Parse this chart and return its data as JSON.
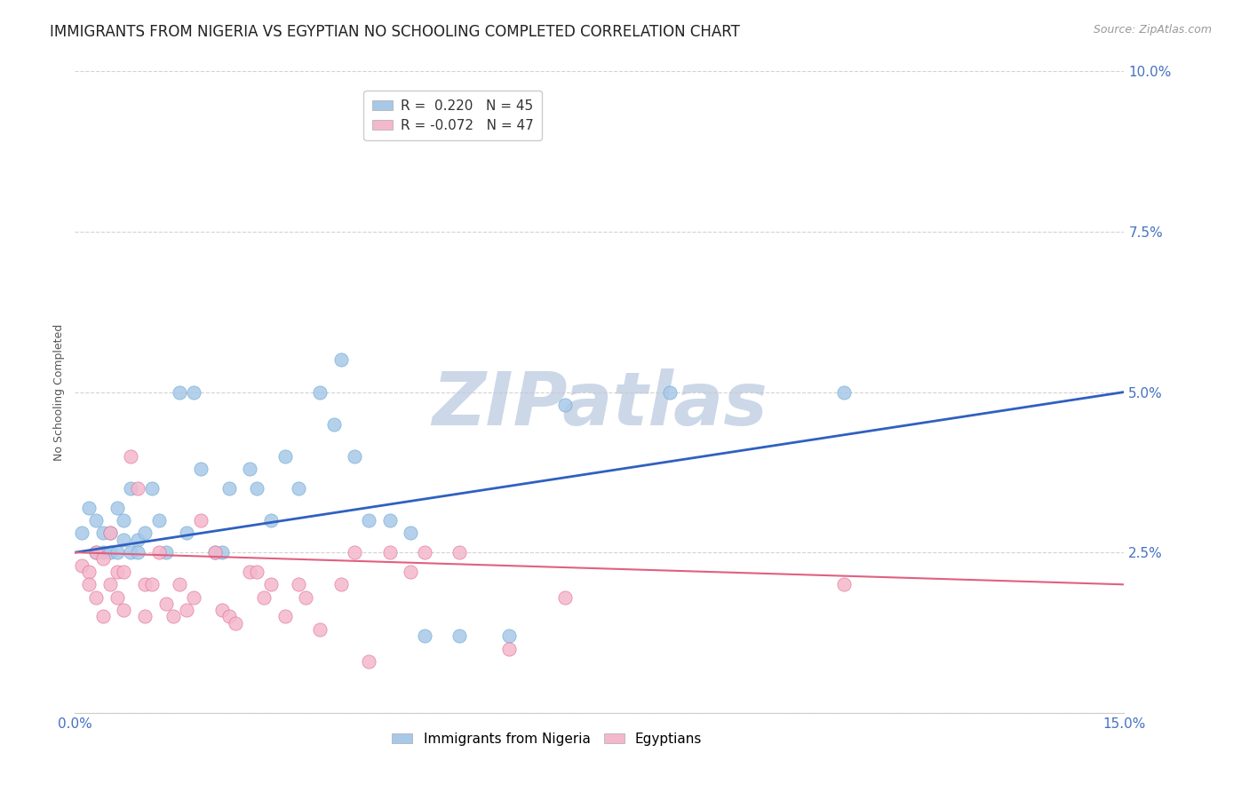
{
  "title": "IMMIGRANTS FROM NIGERIA VS EGYPTIAN NO SCHOOLING COMPLETED CORRELATION CHART",
  "source": "Source: ZipAtlas.com",
  "ylabel": "No Schooling Completed",
  "xlim": [
    0.0,
    0.15
  ],
  "ylim": [
    0.0,
    0.1
  ],
  "series": [
    {
      "name": "Immigrants from Nigeria",
      "color": "#a8c8e8",
      "edge_color": "#6aaad4",
      "R": 0.22,
      "N": 45,
      "line_color": "#3060c0",
      "line_start_y": 0.025,
      "line_end_y": 0.05,
      "x": [
        0.001,
        0.002,
        0.003,
        0.004,
        0.005,
        0.006,
        0.007,
        0.008,
        0.009,
        0.01,
        0.011,
        0.012,
        0.013,
        0.015,
        0.016,
        0.017,
        0.018,
        0.02,
        0.021,
        0.022,
        0.025,
        0.026,
        0.028,
        0.03,
        0.032,
        0.035,
        0.037,
        0.038,
        0.04,
        0.042,
        0.045,
        0.048,
        0.05,
        0.055,
        0.062,
        0.07,
        0.085,
        0.11,
        0.003,
        0.004,
        0.005,
        0.006,
        0.007,
        0.008,
        0.009
      ],
      "y": [
        0.028,
        0.032,
        0.03,
        0.028,
        0.028,
        0.032,
        0.03,
        0.035,
        0.027,
        0.028,
        0.035,
        0.03,
        0.025,
        0.05,
        0.028,
        0.05,
        0.038,
        0.025,
        0.025,
        0.035,
        0.038,
        0.035,
        0.03,
        0.04,
        0.035,
        0.05,
        0.045,
        0.055,
        0.04,
        0.03,
        0.03,
        0.028,
        0.012,
        0.012,
        0.012,
        0.048,
        0.05,
        0.05,
        0.025,
        0.025,
        0.025,
        0.025,
        0.027,
        0.025,
        0.025
      ]
    },
    {
      "name": "Egyptians",
      "color": "#f4b8cc",
      "edge_color": "#e07090",
      "R": -0.072,
      "N": 47,
      "line_color": "#e06080",
      "line_start_y": 0.025,
      "line_end_y": 0.02,
      "x": [
        0.001,
        0.002,
        0.002,
        0.003,
        0.003,
        0.004,
        0.004,
        0.005,
        0.005,
        0.006,
        0.006,
        0.007,
        0.007,
        0.008,
        0.009,
        0.01,
        0.01,
        0.011,
        0.012,
        0.013,
        0.014,
        0.015,
        0.016,
        0.017,
        0.018,
        0.02,
        0.021,
        0.022,
        0.023,
        0.025,
        0.026,
        0.027,
        0.028,
        0.03,
        0.032,
        0.033,
        0.035,
        0.038,
        0.04,
        0.042,
        0.045,
        0.048,
        0.05,
        0.055,
        0.062,
        0.07,
        0.11
      ],
      "y": [
        0.023,
        0.022,
        0.02,
        0.018,
        0.025,
        0.024,
        0.015,
        0.02,
        0.028,
        0.022,
        0.018,
        0.016,
        0.022,
        0.04,
        0.035,
        0.02,
        0.015,
        0.02,
        0.025,
        0.017,
        0.015,
        0.02,
        0.016,
        0.018,
        0.03,
        0.025,
        0.016,
        0.015,
        0.014,
        0.022,
        0.022,
        0.018,
        0.02,
        0.015,
        0.02,
        0.018,
        0.013,
        0.02,
        0.025,
        0.008,
        0.025,
        0.022,
        0.025,
        0.025,
        0.01,
        0.018,
        0.02
      ]
    }
  ],
  "background_color": "#ffffff",
  "grid_color": "#c8c8c8",
  "title_fontsize": 12,
  "axis_label_fontsize": 9,
  "tick_fontsize": 11,
  "legend_fontsize": 11,
  "watermark": "ZIPatlas",
  "watermark_color": "#ccd8e8"
}
